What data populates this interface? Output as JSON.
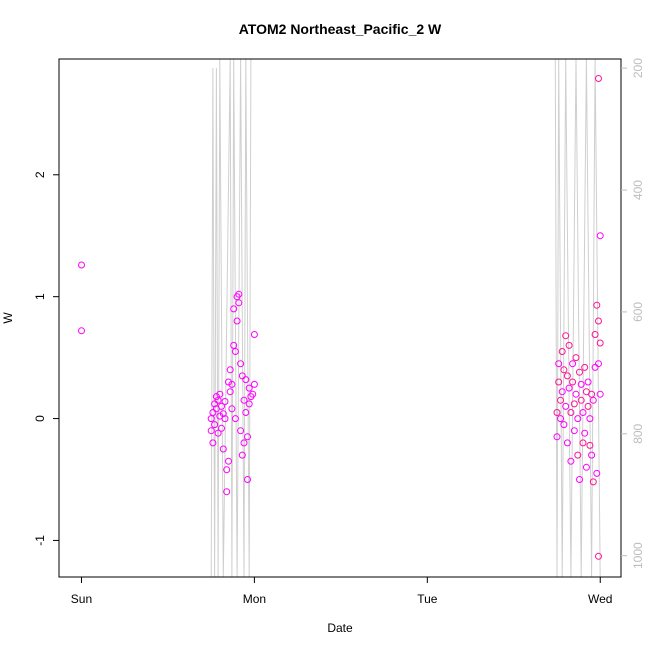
{
  "chart_data": {
    "type": "scatter",
    "title": "ATOM2 Northeast_Pacific_2 W",
    "xlabel": "Date",
    "ylabel": "W",
    "x_ticks": [
      "Sun",
      "Mon",
      "Tue",
      "Wed"
    ],
    "xlim_days": [
      -0.13,
      3.12
    ],
    "ylim": [
      -1.3,
      2.95
    ],
    "y_ticks": [
      -1,
      0,
      1,
      2
    ],
    "right_axis": {
      "ticks": [
        200,
        400,
        600,
        800,
        1000
      ],
      "ylim": [
        1035,
        185
      ],
      "inverted": true
    },
    "grid": false,
    "colors": {
      "points": "#ff00ff",
      "points_alt": "#ff1493",
      "depth_line": "#cfcfcf",
      "right_axis": "#bdbdbd"
    },
    "series": [
      {
        "values": [
          [
            0.0,
            1.26
          ],
          [
            0.0,
            0.72
          ],
          [
            0.75,
            0.0
          ],
          [
            0.75,
            -0.1
          ],
          [
            0.76,
            0.05
          ],
          [
            0.76,
            -0.2
          ],
          [
            0.77,
            0.12
          ],
          [
            0.77,
            -0.05
          ],
          [
            0.78,
            0.18
          ],
          [
            0.78,
            0.08
          ],
          [
            0.79,
            -0.12
          ],
          [
            0.79,
            0.15
          ],
          [
            0.8,
            0.02
          ],
          [
            0.8,
            0.2
          ],
          [
            0.81,
            -0.08
          ],
          [
            0.81,
            0.1
          ],
          [
            0.82,
            0.04
          ],
          [
            0.82,
            -0.25
          ],
          [
            0.83,
            0.0
          ],
          [
            0.83,
            0.14
          ],
          [
            0.84,
            -0.42
          ],
          [
            0.84,
            -0.6
          ],
          [
            0.85,
            0.3
          ],
          [
            0.85,
            -0.35
          ],
          [
            0.86,
            0.4
          ],
          [
            0.86,
            0.22
          ],
          [
            0.87,
            0.28
          ],
          [
            0.87,
            0.08
          ],
          [
            0.88,
            0.6
          ],
          [
            0.88,
            0.9
          ],
          [
            0.89,
            0.55
          ],
          [
            0.89,
            0.0
          ],
          [
            0.9,
            1.0
          ],
          [
            0.9,
            0.8
          ],
          [
            0.91,
            0.95
          ],
          [
            0.91,
            1.02
          ],
          [
            0.92,
            0.45
          ],
          [
            0.92,
            -0.1
          ],
          [
            0.93,
            0.35
          ],
          [
            0.93,
            -0.3
          ],
          [
            0.94,
            0.15
          ],
          [
            0.94,
            -0.2
          ],
          [
            0.95,
            0.32
          ],
          [
            0.95,
            0.05
          ],
          [
            0.96,
            -0.5
          ],
          [
            0.96,
            -0.15
          ],
          [
            0.97,
            0.25
          ],
          [
            0.97,
            0.12
          ],
          [
            0.98,
            0.18
          ],
          [
            0.99,
            0.2
          ],
          [
            1.0,
            0.69
          ],
          [
            1.0,
            0.28
          ],
          [
            2.75,
            0.05
          ],
          [
            2.75,
            -0.15
          ],
          [
            2.76,
            0.3
          ],
          [
            2.76,
            0.45
          ],
          [
            2.77,
            0.15
          ],
          [
            2.77,
            0.0
          ],
          [
            2.78,
            0.55
          ],
          [
            2.78,
            0.22
          ],
          [
            2.79,
            0.4
          ],
          [
            2.79,
            -0.05
          ],
          [
            2.8,
            0.68
          ],
          [
            2.8,
            0.1
          ],
          [
            2.81,
            0.35
          ],
          [
            2.81,
            -0.2
          ],
          [
            2.82,
            0.6
          ],
          [
            2.82,
            0.25
          ],
          [
            2.83,
            0.05
          ],
          [
            2.83,
            -0.35
          ],
          [
            2.84,
            0.3
          ],
          [
            2.84,
            0.45
          ],
          [
            2.85,
            0.12
          ],
          [
            2.85,
            -0.1
          ],
          [
            2.86,
            0.5
          ],
          [
            2.86,
            0.2
          ],
          [
            2.87,
            -0.3
          ],
          [
            2.87,
            0.0
          ],
          [
            2.88,
            0.38
          ],
          [
            2.88,
            -0.5
          ],
          [
            2.89,
            0.15
          ],
          [
            2.89,
            0.28
          ],
          [
            2.9,
            -0.2
          ],
          [
            2.9,
            0.05
          ],
          [
            2.91,
            0.42
          ],
          [
            2.91,
            -0.12
          ],
          [
            2.92,
            0.22
          ],
          [
            2.92,
            -0.4
          ],
          [
            2.93,
            0.1
          ],
          [
            2.93,
            0.3
          ],
          [
            2.94,
            -0.22
          ],
          [
            2.94,
            0.0
          ],
          [
            2.95,
            0.2
          ],
          [
            2.95,
            -0.3
          ],
          [
            2.96,
            -0.52
          ],
          [
            2.96,
            0.15
          ],
          [
            2.97,
            0.69
          ],
          [
            2.97,
            0.42
          ],
          [
            2.98,
            0.93
          ],
          [
            2.98,
            -0.45
          ],
          [
            2.99,
            0.8
          ],
          [
            2.99,
            0.45
          ],
          [
            3.0,
            0.62
          ],
          [
            3.0,
            0.2
          ],
          [
            2.99,
            2.79
          ],
          [
            3.0,
            1.5
          ],
          [
            2.99,
            -1.13
          ]
        ]
      }
    ],
    "depth_line_days": [
      [
        0.75,
        1035
      ],
      [
        0.76,
        200
      ],
      [
        0.77,
        1035
      ],
      [
        0.78,
        200
      ],
      [
        0.79,
        1035
      ],
      [
        0.8,
        185
      ],
      [
        0.82,
        1035
      ],
      [
        0.86,
        185
      ],
      [
        0.87,
        1035
      ],
      [
        0.88,
        185
      ],
      [
        0.9,
        1035
      ],
      [
        0.92,
        185
      ],
      [
        0.94,
        1035
      ],
      [
        0.95,
        185
      ],
      [
        0.97,
        1035
      ],
      [
        0.98,
        185
      ],
      [
        1.0,
        185
      ],
      [
        2.74,
        185
      ],
      [
        2.75,
        1035
      ],
      [
        2.76,
        185
      ],
      [
        2.78,
        1035
      ],
      [
        2.8,
        185
      ],
      [
        2.83,
        1035
      ],
      [
        2.86,
        185
      ],
      [
        2.89,
        1035
      ],
      [
        2.92,
        185
      ],
      [
        2.95,
        1035
      ],
      [
        2.97,
        185
      ],
      [
        3.0,
        1035
      ]
    ]
  }
}
